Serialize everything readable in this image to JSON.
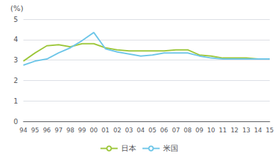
{
  "chart_data": {
    "type": "line",
    "categories": [
      "94",
      "95",
      "96",
      "97",
      "98",
      "99",
      "00",
      "01",
      "02",
      "03",
      "04",
      "05",
      "06",
      "07",
      "08",
      "09",
      "10",
      "11",
      "12",
      "13",
      "14",
      "15"
    ],
    "series": [
      {
        "name": "日本",
        "color": "#9dc73b",
        "values": [
          2.95,
          3.35,
          3.7,
          3.75,
          3.65,
          3.8,
          3.8,
          3.6,
          3.5,
          3.45,
          3.45,
          3.45,
          3.45,
          3.5,
          3.5,
          3.25,
          3.2,
          3.1,
          3.1,
          3.1,
          3.05,
          3.05
        ]
      },
      {
        "name": "米国",
        "color": "#6ec6e8",
        "values": [
          2.75,
          2.95,
          3.05,
          3.35,
          3.6,
          3.95,
          4.35,
          3.55,
          3.4,
          3.3,
          3.2,
          3.25,
          3.35,
          3.35,
          3.35,
          3.2,
          3.1,
          3.05,
          3.05,
          3.05,
          3.05,
          3.05
        ]
      }
    ],
    "ylabel": "(%)",
    "ylim": [
      0,
      5
    ],
    "yticks": [
      0,
      1,
      2,
      3,
      4,
      5
    ],
    "grid": true,
    "legend": "bottom"
  }
}
